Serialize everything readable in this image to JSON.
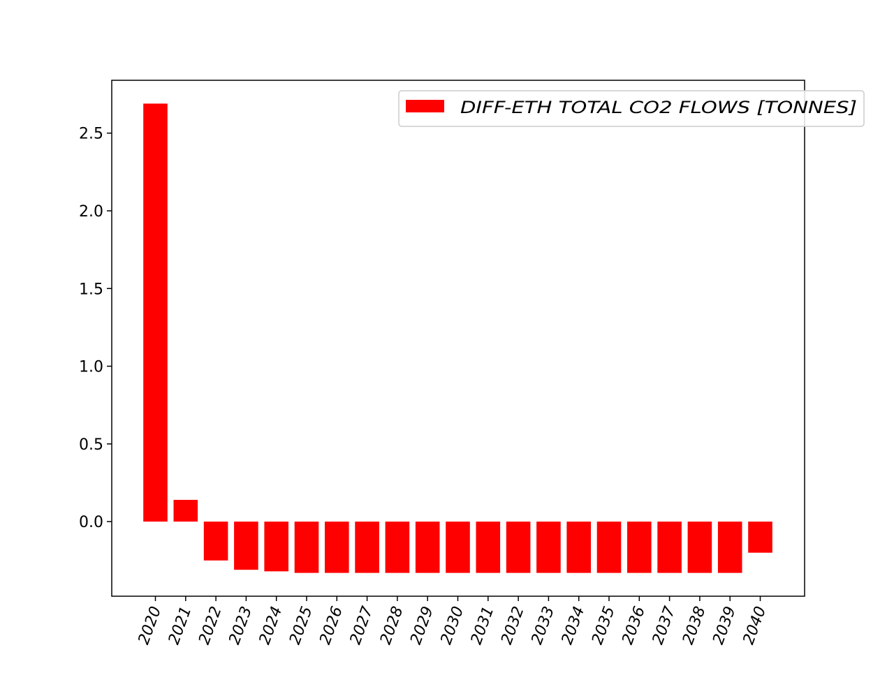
{
  "chart_data": {
    "type": "bar",
    "title": "",
    "xlabel": "",
    "ylabel": "",
    "categories": [
      "2020",
      "2021",
      "2022",
      "2023",
      "2024",
      "2025",
      "2026",
      "2027",
      "2028",
      "2029",
      "2030",
      "2031",
      "2032",
      "2033",
      "2034",
      "2035",
      "2036",
      "2037",
      "2038",
      "2039",
      "2040"
    ],
    "series": [
      {
        "name": "DIFF-ETH TOTAL CO2 FLOWS [TONNES]",
        "color": "#ff0000",
        "values": [
          2.69,
          0.14,
          -0.25,
          -0.31,
          -0.32,
          -0.33,
          -0.33,
          -0.33,
          -0.33,
          -0.33,
          -0.33,
          -0.33,
          -0.33,
          -0.33,
          -0.33,
          -0.33,
          -0.33,
          -0.33,
          -0.33,
          -0.33,
          -0.2
        ]
      }
    ],
    "ylim": [
      -0.48,
      2.84
    ],
    "yticks": [
      0.0,
      0.5,
      1.0,
      1.5,
      2.0,
      2.5
    ],
    "ytick_labels": [
      "0.0",
      "0.5",
      "1.0",
      "1.5",
      "2.0",
      "2.5"
    ],
    "xtick_rotation": 70,
    "legend_position": "top-right",
    "grid": false
  }
}
